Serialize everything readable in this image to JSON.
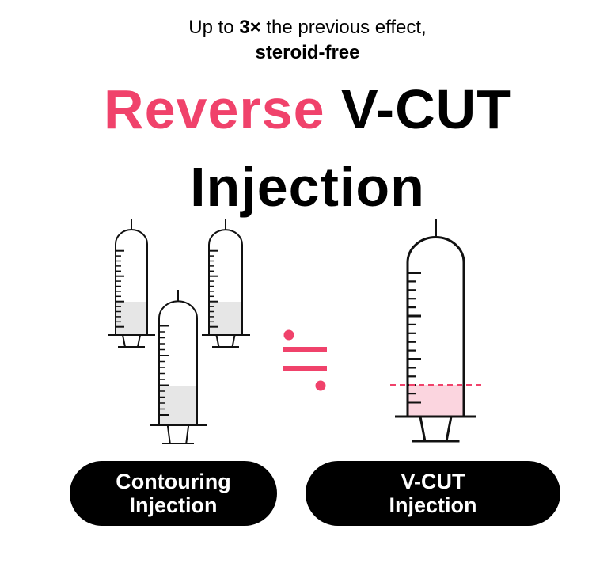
{
  "header": {
    "subtitle_prefix": "Up to ",
    "subtitle_bold": "3×",
    "subtitle_suffix": " the previous effect,",
    "subtitle_line2": "steroid-free",
    "title_pink": "Reverse",
    "title_black": " V-CUT",
    "title_line2": "Injection"
  },
  "colors": {
    "accent": "#f0426b",
    "fill_gray": "#e6e6e6",
    "fill_pink": "#fbd5df"
  },
  "illustration": {
    "left_group": "three syringes, partially filled (gray)",
    "symbol": "approximately-equal-icon",
    "right": "one large syringe, partially filled (pink) with dashed level line"
  },
  "labels": {
    "left": [
      "Contouring",
      "Injection"
    ],
    "right": [
      "V-CUT",
      "Injection"
    ]
  }
}
